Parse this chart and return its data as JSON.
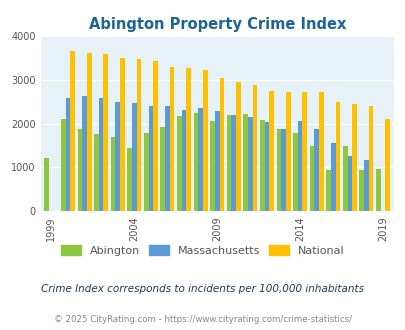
{
  "title": "Abington Property Crime Index",
  "title_color": "#1a6496",
  "subtitle": "Crime Index corresponds to incidents per 100,000 inhabitants",
  "subtitle_color": "#1a3c5a",
  "footer": "© 2025 CityRating.com - https://www.cityrating.com/crime-statistics/",
  "footer_color": "#888888",
  "years": [
    1999,
    2000,
    2001,
    2002,
    2003,
    2004,
    2005,
    2006,
    2007,
    2008,
    2009,
    2010,
    2011,
    2012,
    2013,
    2014,
    2015,
    2016,
    2017,
    2018,
    2019
  ],
  "abington": [
    1220,
    2120,
    1880,
    1760,
    1700,
    1450,
    1780,
    1930,
    2180,
    2250,
    2060,
    2210,
    2220,
    2090,
    1870,
    1780,
    1490,
    950,
    1490,
    940,
    960
  ],
  "massachusetts": [
    null,
    2580,
    2630,
    2600,
    2490,
    2480,
    2400,
    2410,
    2310,
    2360,
    2290,
    2210,
    2160,
    2050,
    1890,
    2060,
    1890,
    1560,
    1270,
    1180,
    null
  ],
  "national": [
    null,
    3660,
    3620,
    3600,
    3510,
    3490,
    3430,
    3300,
    3270,
    3220,
    3050,
    2950,
    2880,
    2760,
    2730,
    2730,
    2730,
    2500,
    2450,
    2400,
    2100
  ],
  "abington_color": "#8dc63f",
  "massachusetts_color": "#5b9bd5",
  "national_color": "#ffc000",
  "plot_bg_color": "#e6f2f8",
  "ylim": [
    0,
    4000
  ],
  "yticks": [
    0,
    1000,
    2000,
    3000,
    4000
  ],
  "tick_years": [
    1999,
    2004,
    2009,
    2014,
    2019
  ],
  "legend_labels": [
    "Abington",
    "Massachusetts",
    "National"
  ],
  "bar_width": 0.28,
  "figsize": [
    4.06,
    3.3
  ],
  "dpi": 100
}
